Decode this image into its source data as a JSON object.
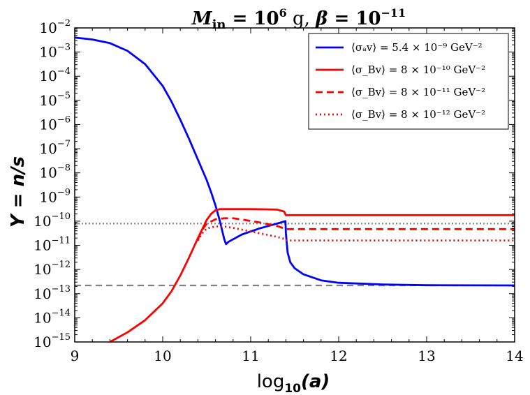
{
  "chart_data": {
    "type": "line",
    "title": "M_in = 10^6 g, β = 10^-11",
    "title_parts": {
      "m": "M",
      "m_sub": "in",
      "eq1": " = 10",
      "exp1": "6",
      "unit": " g, ",
      "beta": "β",
      "eq2": " = 10",
      "exp2": "−11"
    },
    "xlabel": "log10(a)",
    "xlabel_parts": {
      "main": "log",
      "sub": "10",
      "arg": "(a)"
    },
    "ylabel": "Y = n/s",
    "xlim": [
      9,
      14
    ],
    "ylim_log10": [
      -15,
      -2
    ],
    "y_scale": "log",
    "x_ticks": [
      "9",
      "10",
      "11",
      "12",
      "13",
      "14"
    ],
    "y_tick_exponents": [
      "-2",
      "-3",
      "-4",
      "-5",
      "-6",
      "-7",
      "-8",
      "-9",
      "-10",
      "-11",
      "-12",
      "-13",
      "-14",
      "-15"
    ],
    "y_tick_base": "10",
    "reference_lines": [
      {
        "name": "dotted-gray",
        "log10_y": -10.1,
        "color": "#888888",
        "style": "dotted"
      },
      {
        "name": "dashed-gray",
        "log10_y": -12.66,
        "color": "#808080",
        "style": "dashed"
      }
    ],
    "series": [
      {
        "name": "⟨σ_a v⟩ = 5.4 × 10^-9 GeV^-2",
        "label": "⟨σₐv⟩ = 5.4 × 10⁻⁹ GeV⁻²",
        "color": "#0000ff",
        "style": "solid",
        "x": [
          9.0,
          9.2,
          9.4,
          9.6,
          9.8,
          10.0,
          10.1,
          10.2,
          10.3,
          10.4,
          10.5,
          10.55,
          10.6,
          10.65,
          10.7,
          10.72,
          10.75,
          10.9,
          11.1,
          11.3,
          11.395,
          11.4,
          11.42,
          11.45,
          11.5,
          11.6,
          11.8,
          12.0,
          12.5,
          13.0,
          14.0
        ],
        "log10_y": [
          -2.4,
          -2.48,
          -2.63,
          -2.95,
          -3.5,
          -4.4,
          -5.05,
          -5.8,
          -6.6,
          -7.45,
          -8.3,
          -8.8,
          -9.35,
          -10.0,
          -10.75,
          -10.95,
          -10.85,
          -10.55,
          -10.3,
          -10.1,
          -10.0,
          -10.5,
          -11.3,
          -11.7,
          -11.95,
          -12.2,
          -12.45,
          -12.55,
          -12.62,
          -12.65,
          -12.66
        ]
      },
      {
        "name": "⟨σ_B v⟩ = 8 × 10^-10 GeV^-2",
        "label": "⟨σ_Bv⟩ = 8 × 10⁻¹⁰ GeV⁻²",
        "color": "#ff0000",
        "style": "solid",
        "x": [
          9.4,
          9.6,
          9.8,
          10.0,
          10.1,
          10.2,
          10.3,
          10.4,
          10.5,
          10.55,
          10.6,
          10.65,
          10.7,
          11.0,
          11.3,
          11.38,
          11.4,
          11.5,
          12.0,
          13.0,
          14.0
        ],
        "log10_y": [
          -15.0,
          -14.6,
          -14.1,
          -13.4,
          -12.9,
          -12.25,
          -11.5,
          -10.7,
          -9.95,
          -9.7,
          -9.55,
          -9.5,
          -9.5,
          -9.5,
          -9.52,
          -9.6,
          -9.75,
          -9.75,
          -9.75,
          -9.75,
          -9.75
        ]
      },
      {
        "name": "⟨σ_B v⟩ = 8 × 10^-11 GeV^-2",
        "label": "⟨σ_Bv⟩ = 8 × 10⁻¹¹ GeV⁻²",
        "color": "#ff0000",
        "style": "dashed",
        "x": [
          10.4,
          10.45,
          10.5,
          10.6,
          10.7,
          10.8,
          10.9,
          11.1,
          11.3,
          11.38,
          11.4,
          11.5,
          12.0,
          13.0,
          14.0
        ],
        "log10_y": [
          -10.75,
          -10.35,
          -10.1,
          -9.92,
          -9.88,
          -9.88,
          -9.93,
          -10.05,
          -10.2,
          -10.3,
          -10.33,
          -10.33,
          -10.33,
          -10.33,
          -10.33
        ]
      },
      {
        "name": "⟨σ_B v⟩ = 8 × 10^-12 GeV^-2",
        "label": "⟨σ_Bv⟩ = 8 × 10⁻¹² GeV⁻²",
        "color": "#ff0000",
        "style": "dotted",
        "x": [
          10.4,
          10.45,
          10.5,
          10.6,
          10.7,
          10.8,
          10.9,
          11.1,
          11.3,
          11.38,
          11.4,
          11.5,
          12.0,
          13.0,
          14.0
        ],
        "log10_y": [
          -10.8,
          -10.5,
          -10.3,
          -10.22,
          -10.22,
          -10.28,
          -10.35,
          -10.5,
          -10.65,
          -10.73,
          -10.8,
          -10.8,
          -10.8,
          -10.8,
          -10.8
        ]
      }
    ],
    "legend_position": "top-right"
  },
  "colors": {
    "blue": "#0000ff",
    "red": "#ff0000",
    "gray": "#808080"
  }
}
